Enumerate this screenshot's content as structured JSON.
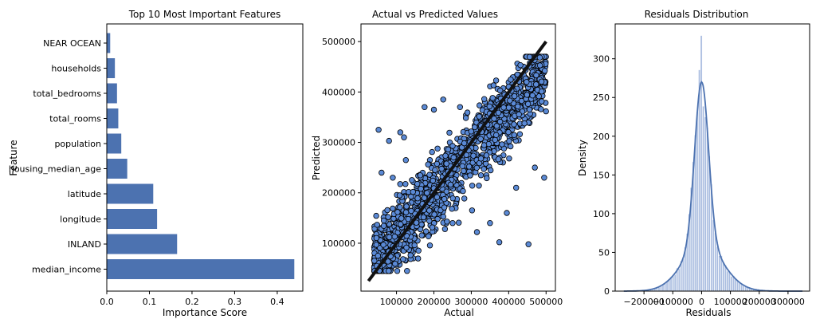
{
  "chart_data": [
    {
      "type": "bar",
      "orientation": "horizontal",
      "title": "Top 10 Most Important Features",
      "xlabel": "Importance Score",
      "ylabel": "Feature",
      "categories": [
        "median_income",
        "INLAND",
        "longitude",
        "latitude",
        "housing_median_age",
        "population",
        "total_rooms",
        "total_bedrooms",
        "households",
        "NEAR OCEAN"
      ],
      "values": [
        0.44,
        0.165,
        0.118,
        0.109,
        0.048,
        0.034,
        0.027,
        0.024,
        0.019,
        0.008
      ],
      "xlim": [
        0,
        0.46
      ],
      "xticks": [
        0.0,
        0.1,
        0.2,
        0.3,
        0.4
      ],
      "xtick_labels": [
        "0.0",
        "0.1",
        "0.2",
        "0.3",
        "0.4"
      ],
      "color": "#4c72b0",
      "grid": false
    },
    {
      "type": "scatter",
      "title": "Actual vs Predicted Values",
      "xlabel": "Actual",
      "ylabel": "Predicted",
      "xlim": [
        5000,
        525000
      ],
      "ylim": [
        5000,
        535000
      ],
      "xticks": [
        100000,
        200000,
        300000,
        400000,
        500000
      ],
      "xtick_labels": [
        "100000",
        "200000",
        "300000",
        "400000",
        "500000"
      ],
      "yticks": [
        100000,
        200000,
        300000,
        400000,
        500000
      ],
      "ytick_labels": [
        "100000",
        "200000",
        "300000",
        "400000",
        "500000"
      ],
      "reference_line": {
        "x": [
          25000,
          500000
        ],
        "y": [
          25000,
          500000
        ],
        "color": "#111111"
      },
      "point_color": "#5b8ad6",
      "edge_color": "#000000",
      "outliers": [
        {
          "x": 52000,
          "y": 325000
        },
        {
          "x": 175000,
          "y": 370000
        },
        {
          "x": 200000,
          "y": 365000
        },
        {
          "x": 120000,
          "y": 310000
        },
        {
          "x": 110000,
          "y": 320000
        },
        {
          "x": 80000,
          "y": 303000
        },
        {
          "x": 125000,
          "y": 265000
        },
        {
          "x": 225000,
          "y": 385000
        },
        {
          "x": 270000,
          "y": 370000
        },
        {
          "x": 315000,
          "y": 122000
        },
        {
          "x": 375000,
          "y": 102000
        },
        {
          "x": 453000,
          "y": 98000
        },
        {
          "x": 495000,
          "y": 230000
        },
        {
          "x": 420000,
          "y": 210000
        },
        {
          "x": 350000,
          "y": 140000
        },
        {
          "x": 60000,
          "y": 240000
        },
        {
          "x": 90000,
          "y": 230000
        },
        {
          "x": 395000,
          "y": 160000
        },
        {
          "x": 250000,
          "y": 140000
        },
        {
          "x": 470000,
          "y": 250000
        }
      ],
      "grid": false
    },
    {
      "type": "histogram",
      "title": "Residuals Distribution",
      "xlabel": "Residuals",
      "ylabel": "Density",
      "xlim": [
        -300000,
        375000
      ],
      "ylim": [
        0,
        345
      ],
      "xticks": [
        -200000,
        -100000,
        0,
        100000,
        200000,
        300000
      ],
      "xtick_labels": [
        "−200000",
        "−100000",
        "0",
        "100000",
        "200000",
        "300000"
      ],
      "yticks": [
        0,
        50,
        100,
        150,
        200,
        250,
        300
      ],
      "ytick_labels": [
        "0",
        "50",
        "100",
        "150",
        "200",
        "250",
        "300"
      ],
      "bar_color": "#aabde0",
      "kde_color": "#4c72b0",
      "kde_peak": 270,
      "hist_peak": 330,
      "grid": false
    }
  ]
}
